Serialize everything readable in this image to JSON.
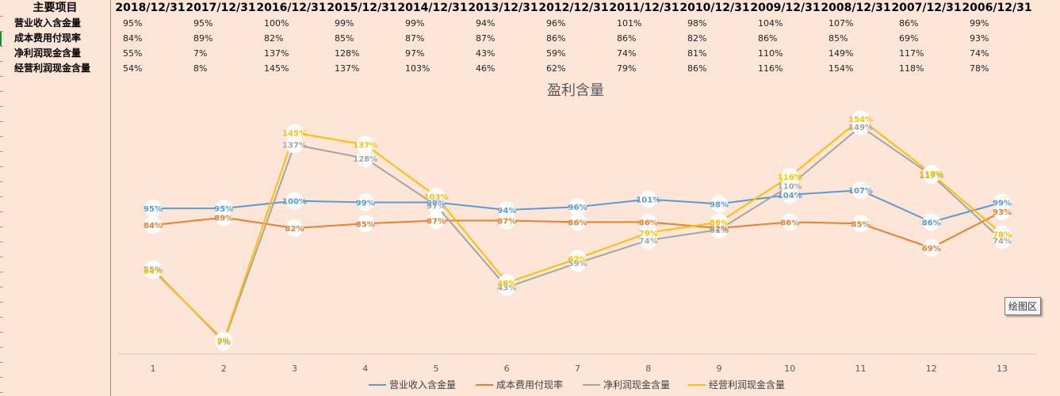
{
  "table": {
    "corner": "主要项目",
    "dates": [
      "2018/12/31",
      "2017/12/31",
      "2016/12/31",
      "2015/12/31",
      "2014/12/31",
      "2013/12/31",
      "2012/12/31",
      "2011/12/31",
      "2010/12/31",
      "2009/12/31",
      "2008/12/31",
      "2007/12/31",
      "2006/12/31"
    ],
    "rows": [
      {
        "label": "营业收入含金量",
        "cells": [
          "95%",
          "95%",
          "100%",
          "99%",
          "99%",
          "94%",
          "96%",
          "101%",
          "98%",
          "104%",
          "107%",
          "86%",
          "99%"
        ]
      },
      {
        "label": "成本费用付现率",
        "cells": [
          "84%",
          "89%",
          "82%",
          "85%",
          "87%",
          "87%",
          "86%",
          "86%",
          "82%",
          "86%",
          "85%",
          "69%",
          "93%"
        ]
      },
      {
        "label": "净利润现金含量",
        "cells": [
          "55%",
          "7%",
          "137%",
          "128%",
          "97%",
          "43%",
          "59%",
          "74%",
          "81%",
          "110%",
          "149%",
          "117%",
          "74%"
        ]
      },
      {
        "label": "经营利润现金含量",
        "cells": [
          "54%",
          "8%",
          "145%",
          "137%",
          "103%",
          "46%",
          "62%",
          "79%",
          "86%",
          "116%",
          "154%",
          "118%",
          "78%"
        ]
      }
    ]
  },
  "chart_data": {
    "type": "line",
    "title": "盈利含量",
    "xlabel": "",
    "ylabel": "",
    "categories": [
      1,
      2,
      3,
      4,
      5,
      6,
      7,
      8,
      9,
      10,
      11,
      12,
      13
    ],
    "ylim": [
      0,
      1.75
    ],
    "grid": false,
    "legend_position": "bottom",
    "series": [
      {
        "name": "营业收入含金量",
        "color": "#5b9bd5",
        "values": [
          0.95,
          0.95,
          1.0,
          0.99,
          0.99,
          0.94,
          0.96,
          1.01,
          0.98,
          1.04,
          1.07,
          0.86,
          0.99
        ],
        "labels": [
          "95%",
          "95%",
          "100%",
          "99%",
          "99%",
          "94%",
          "96%",
          "101%",
          "98%",
          "104%",
          "107%",
          "86%",
          "99%"
        ]
      },
      {
        "name": "成本费用付现率",
        "color": "#ed7d31",
        "values": [
          0.84,
          0.89,
          0.82,
          0.85,
          0.87,
          0.87,
          0.86,
          0.86,
          0.82,
          0.86,
          0.85,
          0.69,
          0.93
        ],
        "labels": [
          "84%",
          "89%",
          "82%",
          "85%",
          "87%",
          "87%",
          "86%",
          "86%",
          "82%",
          "86%",
          "85%",
          "69%",
          "93%"
        ]
      },
      {
        "name": "净利润现金含量",
        "color": "#a5a5a5",
        "values": [
          0.55,
          0.07,
          1.37,
          1.28,
          0.97,
          0.43,
          0.59,
          0.74,
          0.81,
          1.1,
          1.49,
          1.17,
          0.74
        ],
        "labels": [
          "55%",
          "7%",
          "137%",
          "128%",
          "97%",
          "43%",
          "59%",
          "74%",
          "81%",
          "110%",
          "149%",
          "117%",
          "74%"
        ]
      },
      {
        "name": "经营利润现金含量",
        "color": "#ffc000",
        "values": [
          0.54,
          0.08,
          1.45,
          1.37,
          1.03,
          0.46,
          0.62,
          0.79,
          0.86,
          1.16,
          1.54,
          1.18,
          0.78
        ],
        "labels": [
          "54%",
          "8%",
          "145%",
          "137%",
          "103%",
          "46%",
          "62%",
          "79%",
          "86%",
          "116%",
          "154%",
          "118%",
          "78%"
        ]
      }
    ]
  },
  "tooltip": "绘图区"
}
